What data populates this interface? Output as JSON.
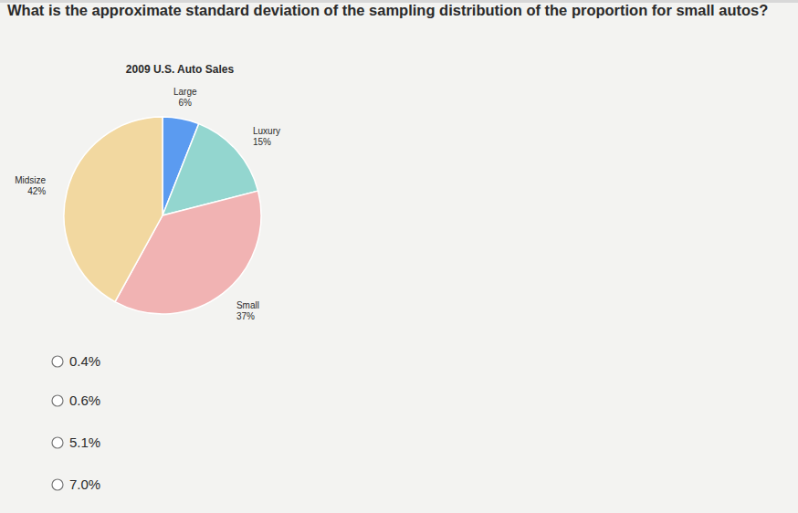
{
  "question": "What is the approximate standard deviation of the sampling distribution of the proportion for small autos?",
  "chart_data": {
    "type": "pie",
    "title": "2009 U.S. Auto Sales",
    "categories": [
      "Large",
      "Luxury",
      "Small",
      "Midsize"
    ],
    "values": [
      6,
      15,
      37,
      42
    ],
    "value_labels": [
      "6%",
      "15%",
      "37%",
      "42%"
    ],
    "colors": [
      "#5b9bf0",
      "#93d6cf",
      "#f1b3b3",
      "#f2d8a0"
    ],
    "data_labels": true
  },
  "options": [
    "0.4%",
    "0.6%",
    "5.1%",
    "7.0%"
  ]
}
